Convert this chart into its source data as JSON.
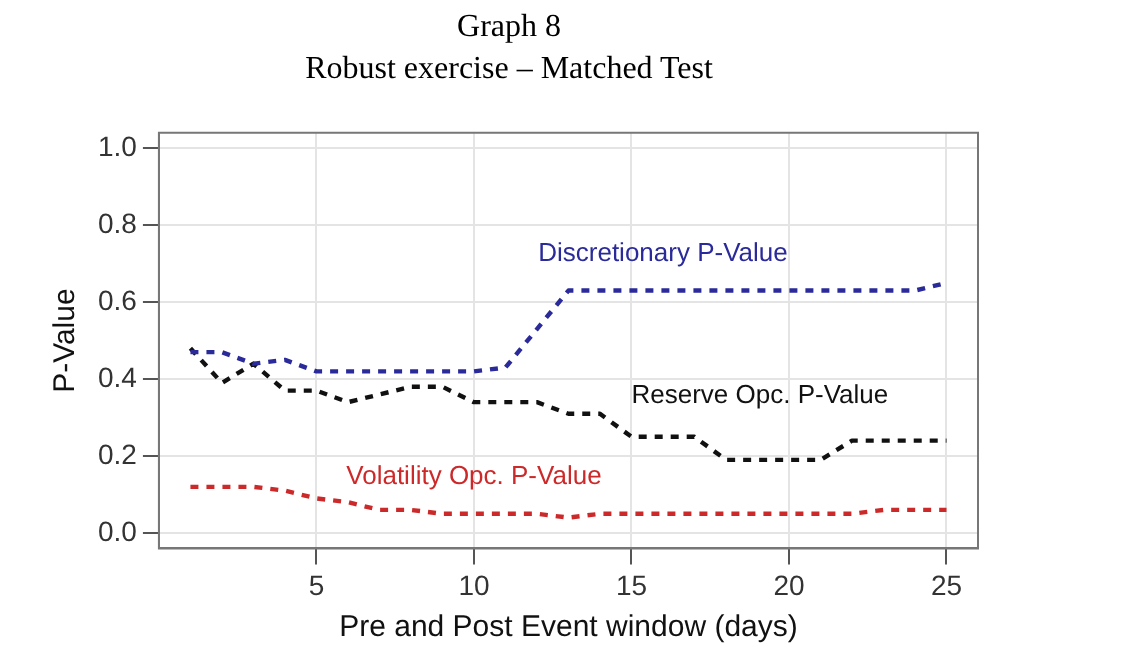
{
  "chart_data": {
    "type": "line",
    "title": "Graph 8",
    "subtitle": "Robust exercise – Matched Test",
    "xlabel": "Pre and Post Event window (days)",
    "ylabel": "P-Value",
    "x": [
      1,
      2,
      3,
      4,
      5,
      6,
      7,
      8,
      9,
      10,
      11,
      12,
      13,
      14,
      15,
      16,
      17,
      18,
      19,
      20,
      21,
      22,
      23,
      24,
      25
    ],
    "series": [
      {
        "name": "Discretionary P-Value",
        "color": "#2a2a9a",
        "values": [
          0.47,
          0.47,
          0.44,
          0.45,
          0.42,
          0.42,
          0.42,
          0.42,
          0.42,
          0.42,
          0.43,
          0.53,
          0.63,
          0.63,
          0.63,
          0.63,
          0.63,
          0.63,
          0.63,
          0.63,
          0.63,
          0.63,
          0.63,
          0.63,
          0.65
        ]
      },
      {
        "name": "Reserve Opc. P-Value",
        "color": "#111111",
        "values": [
          0.48,
          0.39,
          0.44,
          0.37,
          0.37,
          0.34,
          0.36,
          0.38,
          0.38,
          0.34,
          0.34,
          0.34,
          0.31,
          0.31,
          0.25,
          0.25,
          0.25,
          0.19,
          0.19,
          0.19,
          0.19,
          0.24,
          0.24,
          0.24,
          0.24
        ]
      },
      {
        "name": "Volatility Opc. P-Value",
        "color": "#cc2a2a",
        "values": [
          0.12,
          0.12,
          0.12,
          0.11,
          0.09,
          0.08,
          0.06,
          0.06,
          0.05,
          0.05,
          0.05,
          0.05,
          0.04,
          0.05,
          0.05,
          0.05,
          0.05,
          0.05,
          0.05,
          0.05,
          0.05,
          0.05,
          0.06,
          0.06,
          0.06
        ]
      }
    ],
    "xlim": [
      0,
      26
    ],
    "xticks": [
      5,
      10,
      15,
      20,
      25
    ],
    "ylim": [
      -0.04,
      1.04
    ],
    "yticks": [
      {
        "value": 0,
        "label": "0.0"
      },
      {
        "value": 0.2,
        "label": "0.2"
      },
      {
        "value": 0.4,
        "label": "0.4"
      },
      {
        "value": 0.6,
        "label": "0.6"
      },
      {
        "value": 0.8,
        "label": "0.8"
      },
      {
        "value": 1,
        "label": "1.0"
      }
    ],
    "grid": true,
    "legend": false,
    "marker": "none",
    "line_style": "dashed"
  }
}
